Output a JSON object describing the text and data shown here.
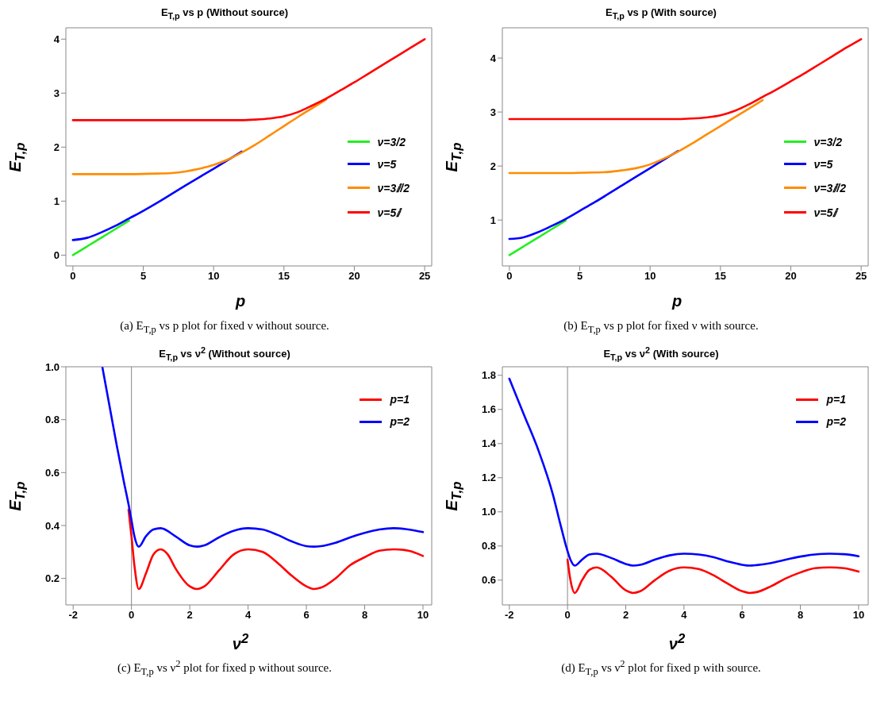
{
  "chart_data": [
    {
      "type": "line",
      "title": "E$_{T,p}$ vs p (Without source)",
      "xlabel": "p",
      "ylabel": "E$_{T,p}$",
      "xlim": [
        -0.5,
        25.5
      ],
      "xticks": [
        0,
        5,
        10,
        15,
        20,
        25
      ],
      "ylim": [
        -0.2,
        4.21
      ],
      "yticks": [
        0,
        1,
        2,
        3,
        4
      ],
      "legend": "right",
      "annotations": [
        "(a) E$_{T,p}$ vs p plot for fixed ν without source."
      ],
      "series": [
        {
          "name": "ν=3/2",
          "color": "#22ee22",
          "x": [
            0,
            1,
            2,
            3,
            4
          ],
          "values": [
            0,
            0.16,
            0.32,
            0.48,
            0.64
          ]
        },
        {
          "name": "ν=5",
          "color": "#0000ff",
          "x": [
            0,
            1,
            2,
            3,
            4,
            5,
            6,
            8,
            10,
            12
          ],
          "values": [
            0.28,
            0.32,
            0.42,
            0.54,
            0.68,
            0.82,
            0.97,
            1.29,
            1.6,
            1.92
          ]
        },
        {
          "name": "ν=3ⅈ/2",
          "color": "#ff8c00",
          "x": [
            0,
            2,
            4,
            6,
            7,
            8,
            9,
            10,
            11,
            12,
            13,
            14,
            15,
            16,
            17,
            18
          ],
          "values": [
            1.5,
            1.5,
            1.5,
            1.51,
            1.52,
            1.55,
            1.6,
            1.67,
            1.77,
            1.9,
            2.05,
            2.22,
            2.39,
            2.56,
            2.72,
            2.88
          ]
        },
        {
          "name": "ν=5ⅈ",
          "color": "#ff0000",
          "x": [
            0,
            4,
            8,
            12,
            13,
            14,
            15,
            16,
            17,
            18,
            19,
            20,
            21,
            22,
            23,
            24,
            25
          ],
          "values": [
            2.5,
            2.5,
            2.5,
            2.5,
            2.51,
            2.53,
            2.57,
            2.65,
            2.77,
            2.9,
            3.05,
            3.2,
            3.36,
            3.52,
            3.68,
            3.84,
            4.0
          ]
        }
      ]
    },
    {
      "type": "line",
      "title": "E$_{T,p}$ vs p (With source)",
      "xlabel": "p",
      "ylabel": "E$_{T,p}$",
      "xlim": [
        -0.5,
        25.5
      ],
      "xticks": [
        0,
        5,
        10,
        15,
        20,
        25
      ],
      "ylim": [
        0.15,
        4.56
      ],
      "yticks": [
        1,
        2,
        3,
        4
      ],
      "legend": "right",
      "annotations": [
        "(b) E$_{T,p}$ vs p plot for fixed ν with source."
      ],
      "series": [
        {
          "name": "ν=3/2",
          "color": "#22ee22",
          "x": [
            0,
            1,
            2,
            3,
            4
          ],
          "values": [
            0.35,
            0.51,
            0.67,
            0.83,
            0.99
          ]
        },
        {
          "name": "ν=5",
          "color": "#0000ff",
          "x": [
            0,
            1,
            2,
            3,
            4,
            5,
            6,
            8,
            10,
            12
          ],
          "values": [
            0.65,
            0.68,
            0.77,
            0.89,
            1.02,
            1.17,
            1.32,
            1.64,
            1.96,
            2.28
          ]
        },
        {
          "name": "ν=3ⅈ/2",
          "color": "#ff8c00",
          "x": [
            0,
            4,
            6,
            7,
            8,
            9,
            10,
            11,
            12,
            13,
            14,
            15,
            16,
            17,
            18
          ],
          "values": [
            1.87,
            1.87,
            1.88,
            1.89,
            1.92,
            1.96,
            2.03,
            2.14,
            2.27,
            2.42,
            2.58,
            2.74,
            2.9,
            3.06,
            3.22
          ]
        },
        {
          "name": "ν=5ⅈ",
          "color": "#ff0000",
          "x": [
            0,
            6,
            12,
            13,
            14,
            15,
            16,
            17,
            18,
            19,
            20,
            21,
            22,
            23,
            24,
            25
          ],
          "values": [
            2.87,
            2.87,
            2.87,
            2.88,
            2.9,
            2.94,
            3.02,
            3.14,
            3.28,
            3.42,
            3.57,
            3.72,
            3.88,
            4.04,
            4.2,
            4.35
          ]
        }
      ]
    },
    {
      "type": "line",
      "title": "E$_{T,p}$ vs ν$^{2}$ (Without source)",
      "xlabel": "ν$^{2}$",
      "ylabel": "E$_{T,p}$",
      "xlim": [
        -2.25,
        10.3
      ],
      "xticks": [
        -2,
        0,
        2,
        4,
        6,
        8,
        10
      ],
      "ylim": [
        0.1,
        1.0
      ],
      "yticks": [
        0.2,
        0.4,
        0.6,
        0.8,
        {
          "value": 1.0,
          "label": "1.0"
        }
      ],
      "legend": "top right",
      "ref_lines": [
        {
          "axis": "x",
          "value": 0,
          "color": "#888888"
        }
      ],
      "annotations": [
        "(c) E$_{T,p}$ vs ν$^{2}$ plot for fixed p without source."
      ],
      "series": [
        {
          "name": "p=1",
          "color": "#ff0000",
          "x": [
            -0.1,
            0,
            0.1,
            0.25,
            0.5,
            0.75,
            1,
            1.25,
            1.5,
            2,
            2.25,
            2.5,
            3,
            3.5,
            4,
            4.5,
            5,
            5.5,
            6,
            6.25,
            6.5,
            7,
            7.5,
            8,
            8.5,
            9,
            9.5,
            10
          ],
          "values": [
            0.46,
            0.36,
            0.25,
            0.16,
            0.22,
            0.29,
            0.31,
            0.29,
            0.24,
            0.17,
            0.16,
            0.17,
            0.23,
            0.29,
            0.31,
            0.3,
            0.26,
            0.21,
            0.17,
            0.16,
            0.165,
            0.2,
            0.25,
            0.28,
            0.305,
            0.31,
            0.305,
            0.285
          ]
        },
        {
          "name": "p=2",
          "color": "#0000ff",
          "x": [
            -1,
            -0.75,
            -0.5,
            -0.25,
            -0.1,
            0,
            0.1,
            0.25,
            0.5,
            0.75,
            1,
            1.5,
            2,
            2.25,
            2.5,
            3,
            3.5,
            4,
            4.5,
            5,
            5.5,
            6,
            6.25,
            6.5,
            7,
            7.5,
            8,
            8.5,
            9,
            9.5,
            10
          ],
          "values": [
            1.0,
            0.85,
            0.7,
            0.56,
            0.48,
            0.42,
            0.36,
            0.32,
            0.36,
            0.385,
            0.39,
            0.36,
            0.325,
            0.32,
            0.325,
            0.355,
            0.38,
            0.39,
            0.385,
            0.365,
            0.34,
            0.322,
            0.32,
            0.322,
            0.335,
            0.355,
            0.372,
            0.385,
            0.39,
            0.385,
            0.375
          ]
        }
      ]
    },
    {
      "type": "line",
      "title": "E$_{T,p}$ vs ν$^{2}$ (With source)",
      "xlabel": "ν$^{2}$",
      "ylabel": "E$_{T,p}$",
      "xlim": [
        -2.24,
        10.33
      ],
      "xticks": [
        -2,
        0,
        2,
        4,
        6,
        8,
        10
      ],
      "ylim": [
        0.455,
        1.85
      ],
      "yticks": [
        0.6,
        0.8,
        {
          "value": 1.0,
          "label": "1.0"
        },
        1.2,
        1.4,
        1.6,
        1.8
      ],
      "legend": "top right",
      "ref_lines": [
        {
          "axis": "x",
          "value": 0,
          "color": "#888888"
        }
      ],
      "annotations": [
        "(d) E$_{T,p}$ vs ν$^{2}$ plot for fixed p with source."
      ],
      "series": [
        {
          "name": "p=1",
          "color": "#ff0000",
          "x": [
            0,
            0.1,
            0.25,
            0.5,
            0.75,
            1,
            1.5,
            2,
            2.25,
            2.5,
            3,
            3.5,
            4,
            4.5,
            5,
            5.5,
            6,
            6.25,
            6.5,
            7,
            7.5,
            8,
            8.5,
            9,
            9.5,
            10
          ],
          "values": [
            0.72,
            0.6,
            0.525,
            0.6,
            0.66,
            0.675,
            0.62,
            0.54,
            0.525,
            0.535,
            0.6,
            0.655,
            0.675,
            0.665,
            0.63,
            0.58,
            0.535,
            0.525,
            0.53,
            0.565,
            0.61,
            0.645,
            0.67,
            0.675,
            0.67,
            0.65
          ]
        },
        {
          "name": "p=2",
          "color": "#0000ff",
          "x": [
            -2,
            -1.5,
            -1,
            -0.5,
            -0.25,
            0,
            0.1,
            0.25,
            0.5,
            0.75,
            1,
            1.5,
            2,
            2.25,
            2.5,
            3,
            3.5,
            4,
            4.5,
            5,
            5.5,
            6,
            6.25,
            6.5,
            7,
            7.5,
            8,
            8.5,
            9,
            9.5,
            10
          ],
          "values": [
            1.78,
            1.57,
            1.36,
            1.1,
            0.93,
            0.77,
            0.72,
            0.685,
            0.72,
            0.75,
            0.755,
            0.73,
            0.695,
            0.685,
            0.69,
            0.72,
            0.745,
            0.755,
            0.75,
            0.735,
            0.71,
            0.69,
            0.685,
            0.688,
            0.7,
            0.72,
            0.738,
            0.75,
            0.755,
            0.752,
            0.74
          ]
        }
      ]
    }
  ]
}
